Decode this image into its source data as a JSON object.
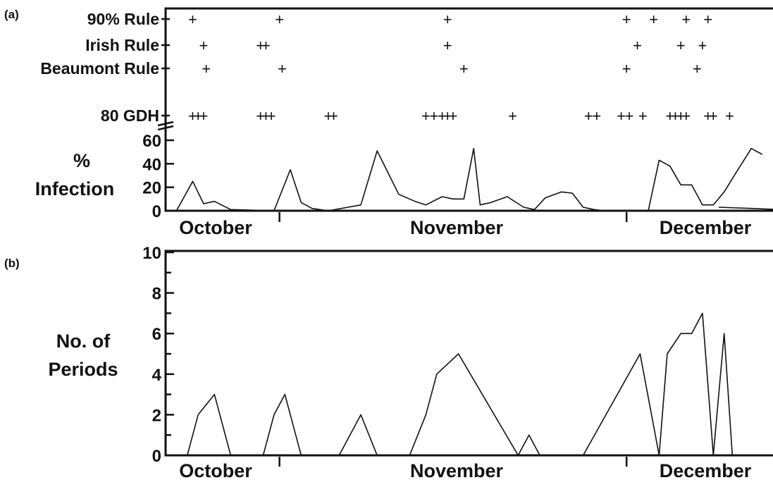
{
  "chart_data": [
    {
      "panel": "(a)",
      "type": "line",
      "event_rows": [
        {
          "label": "90% Rule",
          "days": [
            5,
            21,
            52,
            85,
            90,
            96,
            100
          ]
        },
        {
          "label": "Irish Rule",
          "days": [
            7,
            17.5,
            18.5,
            52,
            87,
            95,
            99
          ]
        },
        {
          "label": "Beaumont Rule",
          "days": [
            7.5,
            21.5,
            55,
            85,
            98
          ]
        },
        {
          "label": "80 GDH",
          "days": [
            5,
            6,
            7,
            17.5,
            18.5,
            19.5,
            30,
            31,
            48,
            49.5,
            51,
            52,
            53,
            64,
            78,
            79.5,
            84,
            85.5,
            88,
            93,
            94,
            95,
            96,
            100,
            101,
            104
          ]
        }
      ],
      "ylabel_line1": "%",
      "ylabel_line2": "Infection",
      "yticks": [
        "0",
        "20",
        "40",
        "60"
      ],
      "ylim": [
        0,
        60
      ],
      "xlim": [
        0,
        112
      ],
      "months": [
        "October",
        "November",
        "December"
      ],
      "month_dividers": [
        21,
        85
      ],
      "x": [
        2,
        5,
        7,
        9,
        12,
        20,
        23,
        25,
        27,
        30,
        36,
        39,
        43,
        46,
        48,
        51,
        53,
        55,
        56.8,
        58,
        60,
        63,
        66,
        68,
        70,
        73,
        75,
        77,
        79,
        81,
        89,
        91,
        93,
        95,
        97,
        99,
        101,
        103,
        105,
        108,
        110
      ],
      "y": [
        0,
        25,
        6,
        8,
        1,
        0,
        35,
        7,
        2,
        0,
        5,
        51,
        14,
        8,
        5,
        12,
        10,
        10,
        53,
        5,
        7,
        12,
        3,
        1,
        11,
        16,
        15,
        3,
        1,
        0,
        0,
        43,
        38,
        22,
        22,
        5,
        5,
        16,
        31,
        53,
        48
      ],
      "extra_x": [
        102,
        108,
        113
      ],
      "extra_y": [
        3,
        2,
        1
      ]
    },
    {
      "panel": "(b)",
      "type": "line",
      "ylabel_line1": "No. of",
      "ylabel_line2": "Periods",
      "yticks": [
        "0",
        "2",
        "4",
        "6",
        "8",
        "10"
      ],
      "ylim": [
        0,
        10
      ],
      "xlim": [
        0,
        112
      ],
      "months": [
        "October",
        "November",
        "December"
      ],
      "month_dividers": [
        21,
        85
      ],
      "x": [
        4,
        6,
        9,
        12,
        18,
        20,
        22,
        25,
        32,
        36,
        39,
        45,
        48,
        50,
        54,
        65,
        67,
        69,
        77,
        87.5,
        91,
        92.5,
        95,
        97,
        99,
        101,
        103,
        104.5,
        107
      ],
      "y": [
        0,
        2,
        3,
        0,
        0,
        2,
        3,
        0,
        0,
        2,
        0,
        0,
        2,
        4,
        5,
        0,
        1,
        0,
        0,
        5,
        0,
        5,
        6,
        6,
        7,
        0,
        6,
        0,
        0
      ]
    }
  ]
}
